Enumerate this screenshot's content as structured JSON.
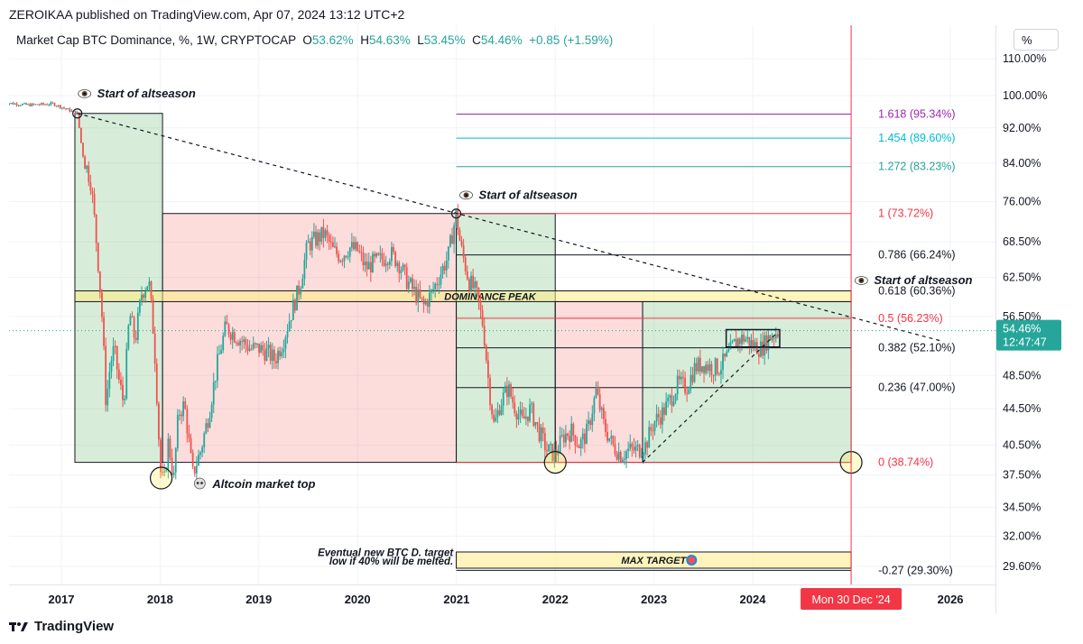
{
  "publisher_line": "ZEROIKAA published on TradingView.com, Apr 07, 2024 13:12 UTC+2",
  "legend": {
    "title": "Market Cap BTC Dominance, %, 1W, CRYPTOCAP",
    "o_label": "O",
    "o_value": "53.62%",
    "h_label": "H",
    "h_value": "54.63%",
    "l_label": "L",
    "l_value": "53.45%",
    "c_label": "C",
    "c_value": "54.46%",
    "change": "+0.85 (+1.59%)"
  },
  "scale_toggle": "%",
  "footer_brand": "TradingView",
  "colors": {
    "up": "#26a69a",
    "down": "#ef5350",
    "green_zone": "#4caf50",
    "red_zone": "#e57373",
    "fib_1618": "#9c27b0",
    "fib_1454": "#00bcd4",
    "fib_1272": "#26a69a",
    "fib_red": "#f23645",
    "line": "#131722"
  },
  "chart_data": {
    "type": "line",
    "series": [
      {
        "name": "",
        "values": []
      }
    ],
    "y_scale": "log",
    "ylim": [
      27.5,
      115
    ],
    "xlim": [
      "2016-06-01",
      "2026-06-01"
    ],
    "x_ticks": [
      "2017",
      "2018",
      "2019",
      "2020",
      "2021",
      "2022",
      "2023",
      "2024",
      "2026"
    ],
    "y_ticks": [
      "110.00%",
      "100.00%",
      "92.00%",
      "84.00%",
      "76.00%",
      "68.50%",
      "62.50%",
      "56.50%",
      "48.50%",
      "44.50%",
      "40.50%",
      "37.50%",
      "34.50%",
      "32.00%",
      "29.60%"
    ],
    "price_path": [
      [
        "2016-06-01",
        98.2
      ],
      [
        "2016-09-01",
        97.6
      ],
      [
        "2016-12-01",
        97.9
      ],
      [
        "2017-03-01",
        95.5
      ],
      [
        "2017-03-20",
        86
      ],
      [
        "2017-04-20",
        80
      ],
      [
        "2017-05-15",
        66
      ],
      [
        "2017-06-01",
        56
      ],
      [
        "2017-06-15",
        45
      ],
      [
        "2017-07-01",
        50
      ],
      [
        "2017-07-15",
        52
      ],
      [
        "2017-08-01",
        48
      ],
      [
        "2017-08-20",
        45
      ],
      [
        "2017-09-10",
        57
      ],
      [
        "2017-10-01",
        53
      ],
      [
        "2017-10-25",
        60
      ],
      [
        "2017-11-20",
        62
      ],
      [
        "2017-12-10",
        53
      ],
      [
        "2018-01-01",
        38
      ],
      [
        "2018-01-15",
        36.5
      ],
      [
        "2018-02-01",
        41
      ],
      [
        "2018-02-20",
        36.8
      ],
      [
        "2018-03-10",
        44
      ],
      [
        "2018-04-01",
        45
      ],
      [
        "2018-05-01",
        37.5
      ],
      [
        "2018-06-01",
        40
      ],
      [
        "2018-07-01",
        44
      ],
      [
        "2018-08-01",
        50
      ],
      [
        "2018-09-01",
        55
      ],
      [
        "2018-10-01",
        54
      ],
      [
        "2018-11-01",
        53
      ],
      [
        "2018-12-01",
        52
      ],
      [
        "2019-01-01",
        52
      ],
      [
        "2019-02-01",
        51.5
      ],
      [
        "2019-03-01",
        50.5
      ],
      [
        "2019-04-01",
        53
      ],
      [
        "2019-05-01",
        57
      ],
      [
        "2019-06-01",
        61
      ],
      [
        "2019-07-01",
        68
      ],
      [
        "2019-08-01",
        69
      ],
      [
        "2019-09-01",
        70
      ],
      [
        "2019-10-01",
        67
      ],
      [
        "2019-11-01",
        66
      ],
      [
        "2019-12-01",
        67.5
      ],
      [
        "2020-01-01",
        67
      ],
      [
        "2020-02-01",
        64
      ],
      [
        "2020-03-01",
        65
      ],
      [
        "2020-04-01",
        65.5
      ],
      [
        "2020-05-01",
        66.5
      ],
      [
        "2020-06-01",
        65
      ],
      [
        "2020-07-01",
        62
      ],
      [
        "2020-08-01",
        60
      ],
      [
        "2020-09-01",
        58
      ],
      [
        "2020-10-01",
        60
      ],
      [
        "2020-11-01",
        63
      ],
      [
        "2020-12-01",
        66
      ],
      [
        "2020-12-31",
        73.7
      ],
      [
        "2021-01-15",
        68
      ],
      [
        "2021-02-15",
        62
      ],
      [
        "2021-03-15",
        60
      ],
      [
        "2021-04-10",
        55
      ],
      [
        "2021-05-01",
        47
      ],
      [
        "2021-05-20",
        42.5
      ],
      [
        "2021-06-10",
        45
      ],
      [
        "2021-07-10",
        47
      ],
      [
        "2021-08-01",
        45
      ],
      [
        "2021-09-01",
        43
      ],
      [
        "2021-10-01",
        44.5
      ],
      [
        "2021-11-01",
        42
      ],
      [
        "2021-12-01",
        40
      ],
      [
        "2022-01-01",
        39.5
      ],
      [
        "2022-02-01",
        41.5
      ],
      [
        "2022-03-01",
        42
      ],
      [
        "2022-04-01",
        40.5
      ],
      [
        "2022-05-01",
        42
      ],
      [
        "2022-06-01",
        46.5
      ],
      [
        "2022-07-01",
        42.5
      ],
      [
        "2022-08-01",
        40.5
      ],
      [
        "2022-09-01",
        39.5
      ],
      [
        "2022-10-01",
        40
      ],
      [
        "2022-11-01",
        40
      ],
      [
        "2022-12-01",
        40.5
      ],
      [
        "2023-01-01",
        43
      ],
      [
        "2023-02-01",
        44
      ],
      [
        "2023-03-01",
        45.5
      ],
      [
        "2023-04-01",
        47.5
      ],
      [
        "2023-05-01",
        47
      ],
      [
        "2023-06-01",
        49.5
      ],
      [
        "2023-07-01",
        50
      ],
      [
        "2023-08-01",
        49.5
      ],
      [
        "2023-09-01",
        49.5
      ],
      [
        "2023-10-01",
        51
      ],
      [
        "2023-11-01",
        53
      ],
      [
        "2023-12-01",
        53.5
      ],
      [
        "2024-01-01",
        52.5
      ],
      [
        "2024-02-01",
        52
      ],
      [
        "2024-03-01",
        53.5
      ],
      [
        "2024-04-07",
        54.46
      ]
    ],
    "last_price_label": "54.46%",
    "countdown_label": "12:47:47",
    "vertical_marker_date": "2024-12-30",
    "vertical_marker_label": "Mon 30 Dec '24",
    "fib_levels": [
      {
        "label": "1.618 (95.34%)",
        "value": 95.34,
        "color": "#9c27b0",
        "start": "2020-12-31"
      },
      {
        "label": "1.454 (89.60%)",
        "value": 89.6,
        "color": "#00bcd4",
        "start": "2020-12-31"
      },
      {
        "label": "1.272 (83.23%)",
        "value": 83.23,
        "color": "#26a69a",
        "start": "2020-12-31"
      },
      {
        "label": "1 (73.72%)",
        "value": 73.72,
        "color": "#f23645",
        "start": "2020-12-31"
      },
      {
        "label": "0.786 (66.24%)",
        "value": 66.24,
        "color": "#131722",
        "start": "2020-12-31"
      },
      {
        "label": "0.618 (60.36%)",
        "value": 60.36,
        "color": "#131722",
        "start": "2020-12-31"
      },
      {
        "label": "0.5 (56.23%)",
        "value": 56.23,
        "color": "#f23645",
        "start": "2020-12-31"
      },
      {
        "label": "0.382 (52.10%)",
        "value": 52.1,
        "color": "#131722",
        "start": "2020-12-31"
      },
      {
        "label": "0.236 (47.00%)",
        "value": 47.0,
        "color": "#131722",
        "start": "2020-12-31"
      },
      {
        "label": "0 (38.74%)",
        "value": 38.74,
        "color": "#f23645",
        "start": "2020-12-31"
      },
      {
        "label": "-0.27 (29.30%)",
        "value": 29.3,
        "color": "#131722",
        "start": "2020-12-31"
      }
    ],
    "zones": [
      {
        "kind": "green",
        "x1": "2017-02-20",
        "x2": "2018-01-10",
        "y1": 95.5,
        "y2": 38.74
      },
      {
        "kind": "red",
        "x1": "2018-01-10",
        "x2": "2020-12-31",
        "y1": 73.72,
        "y2": 38.74
      },
      {
        "kind": "green",
        "x1": "2020-12-31",
        "x2": "2022-01-01",
        "y1": 73.72,
        "y2": 38.74
      },
      {
        "kind": "red",
        "x1": "2022-01-01",
        "x2": "2022-11-20",
        "y1": 58.7,
        "y2": 38.74
      },
      {
        "kind": "green",
        "x1": "2022-11-20",
        "x2": "2024-12-30",
        "y1": 58.7,
        "y2": 38.74
      }
    ],
    "dominance_peak": {
      "label": "DOMINANCE PEAK",
      "x1": "2017-02-20",
      "x2": "2024-12-30",
      "y1": 60.36,
      "y2": 58.7
    },
    "max_target": {
      "label": "MAX TARGET",
      "x1": "2020-12-31",
      "x2": "2024-12-30",
      "y1": 30.3,
      "y2": 29.3
    },
    "annotations": [
      {
        "text": "Start of altseason",
        "x": "2017-03-01",
        "y": 100.5
      },
      {
        "text": "Start of altseason",
        "x": "2021-01-10",
        "y": 77.3
      },
      {
        "text": "Start of altseason",
        "x": "2025-01-10",
        "y": 62.0
      },
      {
        "text": "Altcoin market top",
        "x": "2018-05-01",
        "y": 36.6
      },
      {
        "text": "Eventual new BTC D. target",
        "x": "2020-12-20",
        "y": 30.7
      },
      {
        "text": "low if 40% will be melted.",
        "x": "2020-12-20",
        "y": 30.0
      }
    ],
    "circles": [
      {
        "x": "2017-03-01",
        "y": 95.5,
        "size": "small"
      },
      {
        "x": "2020-12-31",
        "y": 73.72,
        "size": "small"
      },
      {
        "x": "2018-01-05",
        "y": 37.2,
        "size": "large"
      },
      {
        "x": "2022-01-01",
        "y": 38.74,
        "size": "large"
      },
      {
        "x": "2024-12-30",
        "y": 38.74,
        "size": "large"
      }
    ],
    "trend_lines": [
      {
        "style": "dashed",
        "from": [
          "2017-03-01",
          95.5
        ],
        "to": [
          "2025-12-01",
          53.0
        ]
      },
      {
        "style": "dashed",
        "from": [
          "2022-11-20",
          38.74
        ],
        "to": [
          "2024-04-01",
          54.2
        ]
      }
    ],
    "range_box": {
      "x1": "2023-09-25",
      "x2": "2024-04-10",
      "y1": 54.6,
      "y2": 52.2
    }
  }
}
